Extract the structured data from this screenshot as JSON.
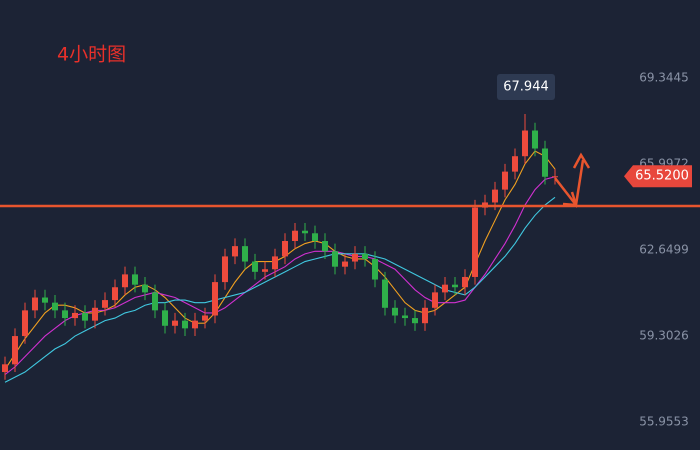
{
  "chart_data": {
    "type": "candlestick",
    "title": "4小时图",
    "ylim": [
      54.865,
      72.38
    ],
    "yticks": [
      69.3445,
      65.9972,
      62.6499,
      59.3026,
      55.9553
    ],
    "up_color": "#ee4b3d",
    "down_color": "#2fb04a",
    "open": [
      57.9,
      58.2,
      59.3,
      60.3,
      60.8,
      60.6,
      60.3,
      60.0,
      60.2,
      59.9,
      60.4,
      60.7,
      61.2,
      61.7,
      61.3,
      61.0,
      60.3,
      59.7,
      59.9,
      59.6,
      59.9,
      60.1,
      61.4,
      62.4,
      62.8,
      62.2,
      61.8,
      61.9,
      62.4,
      63.0,
      63.4,
      63.3,
      63.0,
      62.6,
      62.0,
      62.2,
      62.5,
      62.3,
      61.5,
      60.4,
      60.1,
      60.0,
      59.8,
      60.4,
      61.0,
      61.3,
      61.2,
      61.6,
      64.3,
      64.5,
      65.0,
      65.7,
      66.3,
      67.3,
      66.6,
      65.5
    ],
    "high": [
      58.5,
      59.6,
      60.6,
      61.1,
      61.1,
      60.9,
      60.6,
      60.5,
      60.5,
      60.7,
      61.0,
      61.5,
      62.0,
      62.0,
      61.6,
      61.3,
      60.6,
      60.2,
      60.2,
      60.2,
      60.4,
      61.7,
      62.7,
      63.1,
      63.1,
      62.5,
      62.2,
      62.7,
      63.3,
      63.7,
      63.7,
      63.6,
      63.3,
      62.9,
      62.5,
      62.8,
      62.8,
      62.6,
      61.8,
      60.7,
      60.4,
      60.3,
      60.7,
      61.3,
      61.6,
      61.6,
      61.9,
      64.6,
      64.8,
      65.3,
      66.0,
      66.6,
      67.944,
      67.6,
      66.9,
      65.8
    ],
    "low": [
      57.6,
      57.9,
      59.0,
      60.0,
      60.3,
      60.0,
      59.7,
      59.7,
      59.6,
      59.6,
      60.1,
      60.4,
      60.9,
      61.0,
      60.7,
      60.0,
      59.4,
      59.4,
      59.3,
      59.3,
      59.6,
      59.8,
      61.1,
      62.1,
      61.9,
      61.5,
      61.5,
      61.6,
      62.1,
      62.7,
      63.0,
      62.7,
      62.3,
      61.7,
      61.7,
      61.9,
      62.0,
      61.2,
      60.1,
      59.8,
      59.7,
      59.5,
      59.5,
      60.1,
      60.7,
      60.9,
      60.9,
      61.3,
      64.0,
      64.2,
      64.7,
      65.4,
      66.0,
      66.3,
      65.2,
      65.2
    ],
    "close": [
      58.2,
      59.3,
      60.3,
      60.8,
      60.6,
      60.3,
      60.0,
      60.2,
      59.9,
      60.4,
      60.7,
      61.2,
      61.7,
      61.3,
      61.0,
      60.3,
      59.7,
      59.9,
      59.6,
      59.9,
      60.1,
      61.4,
      62.4,
      62.8,
      62.2,
      61.8,
      61.9,
      62.4,
      63.0,
      63.4,
      63.3,
      63.0,
      62.6,
      62.0,
      62.2,
      62.5,
      62.3,
      61.5,
      60.4,
      60.1,
      60.0,
      59.8,
      60.4,
      61.0,
      61.3,
      61.2,
      61.6,
      64.3,
      64.5,
      65.0,
      65.7,
      66.3,
      67.3,
      66.6,
      65.5,
      65.52
    ],
    "series": [
      {
        "color": "#f0a020",
        "values": [
          58.0,
          58.6,
          59.2,
          59.7,
          60.2,
          60.5,
          60.5,
          60.4,
          60.2,
          60.2,
          60.3,
          60.5,
          60.9,
          61.2,
          61.3,
          61.1,
          60.8,
          60.4,
          60.0,
          59.8,
          59.8,
          60.2,
          60.8,
          61.4,
          61.9,
          62.2,
          62.2,
          62.2,
          62.4,
          62.7,
          62.9,
          63.0,
          62.9,
          62.6,
          62.4,
          62.3,
          62.3,
          62.0,
          61.6,
          61.1,
          60.6,
          60.3,
          60.2,
          60.3,
          60.6,
          60.9,
          61.2,
          62.1,
          63.0,
          63.8,
          64.6,
          65.2,
          66.0,
          66.5,
          66.3,
          65.8
        ]
      },
      {
        "color": "#d030d0",
        "values": [
          57.8,
          58.1,
          58.5,
          58.9,
          59.3,
          59.6,
          59.9,
          60.1,
          60.2,
          60.3,
          60.3,
          60.4,
          60.6,
          60.8,
          60.9,
          61.0,
          60.9,
          60.8,
          60.6,
          60.4,
          60.2,
          60.2,
          60.4,
          60.7,
          61.0,
          61.3,
          61.6,
          61.8,
          62.0,
          62.3,
          62.5,
          62.6,
          62.6,
          62.6,
          62.5,
          62.4,
          62.4,
          62.3,
          62.1,
          61.9,
          61.5,
          61.1,
          60.8,
          60.6,
          60.6,
          60.6,
          60.7,
          61.2,
          61.7,
          62.3,
          62.9,
          63.6,
          64.4,
          65.0,
          65.4,
          65.5
        ]
      },
      {
        "color": "#40c8e0",
        "values": [
          57.5,
          57.7,
          57.9,
          58.2,
          58.5,
          58.8,
          59.0,
          59.3,
          59.5,
          59.7,
          59.9,
          60.0,
          60.2,
          60.3,
          60.5,
          60.6,
          60.6,
          60.7,
          60.7,
          60.6,
          60.6,
          60.7,
          60.8,
          60.9,
          61.0,
          61.2,
          61.4,
          61.6,
          61.8,
          62.0,
          62.2,
          62.3,
          62.4,
          62.5,
          62.5,
          62.5,
          62.5,
          62.4,
          62.3,
          62.1,
          61.9,
          61.7,
          61.5,
          61.3,
          61.1,
          61.0,
          60.9,
          61.2,
          61.6,
          62.0,
          62.4,
          62.9,
          63.5,
          64.0,
          64.4,
          64.7
        ]
      }
    ],
    "level": 64.36,
    "level_color": "#e8552e",
    "price_label": {
      "value": 65.52,
      "label": "65.5200"
    }
  }
}
